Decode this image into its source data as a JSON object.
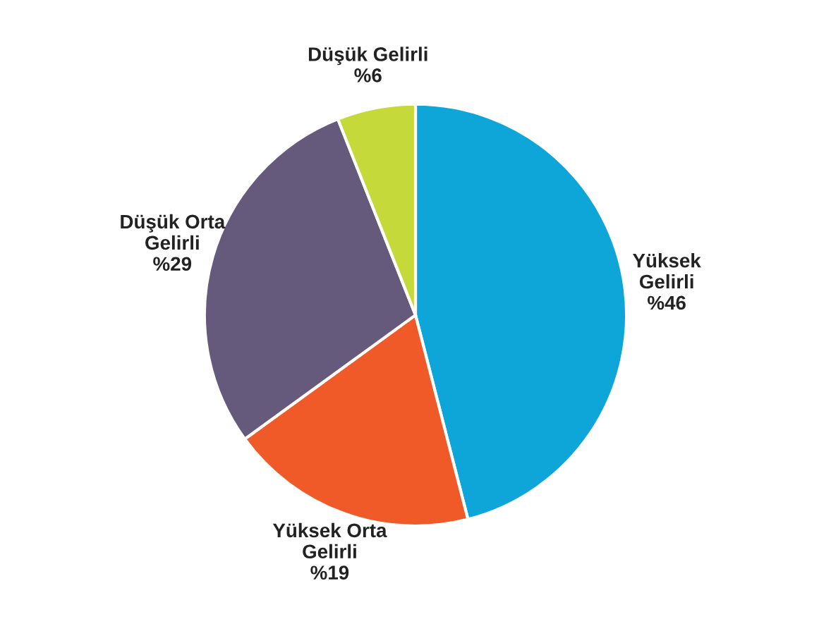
{
  "chart_data": {
    "type": "pie",
    "categories": [
      "Yüksek\nGelirli",
      "Yüksek Orta\nGelirli",
      "Düşük Orta\nGelirli",
      "Düşük Gelirli"
    ],
    "values": [
      46,
      19,
      29,
      6
    ],
    "value_labels": [
      "%46",
      "%19",
      "%29",
      "%6"
    ],
    "colors": [
      "#0ea5d8",
      "#f05a28",
      "#655a7c",
      "#c5d93a"
    ]
  }
}
